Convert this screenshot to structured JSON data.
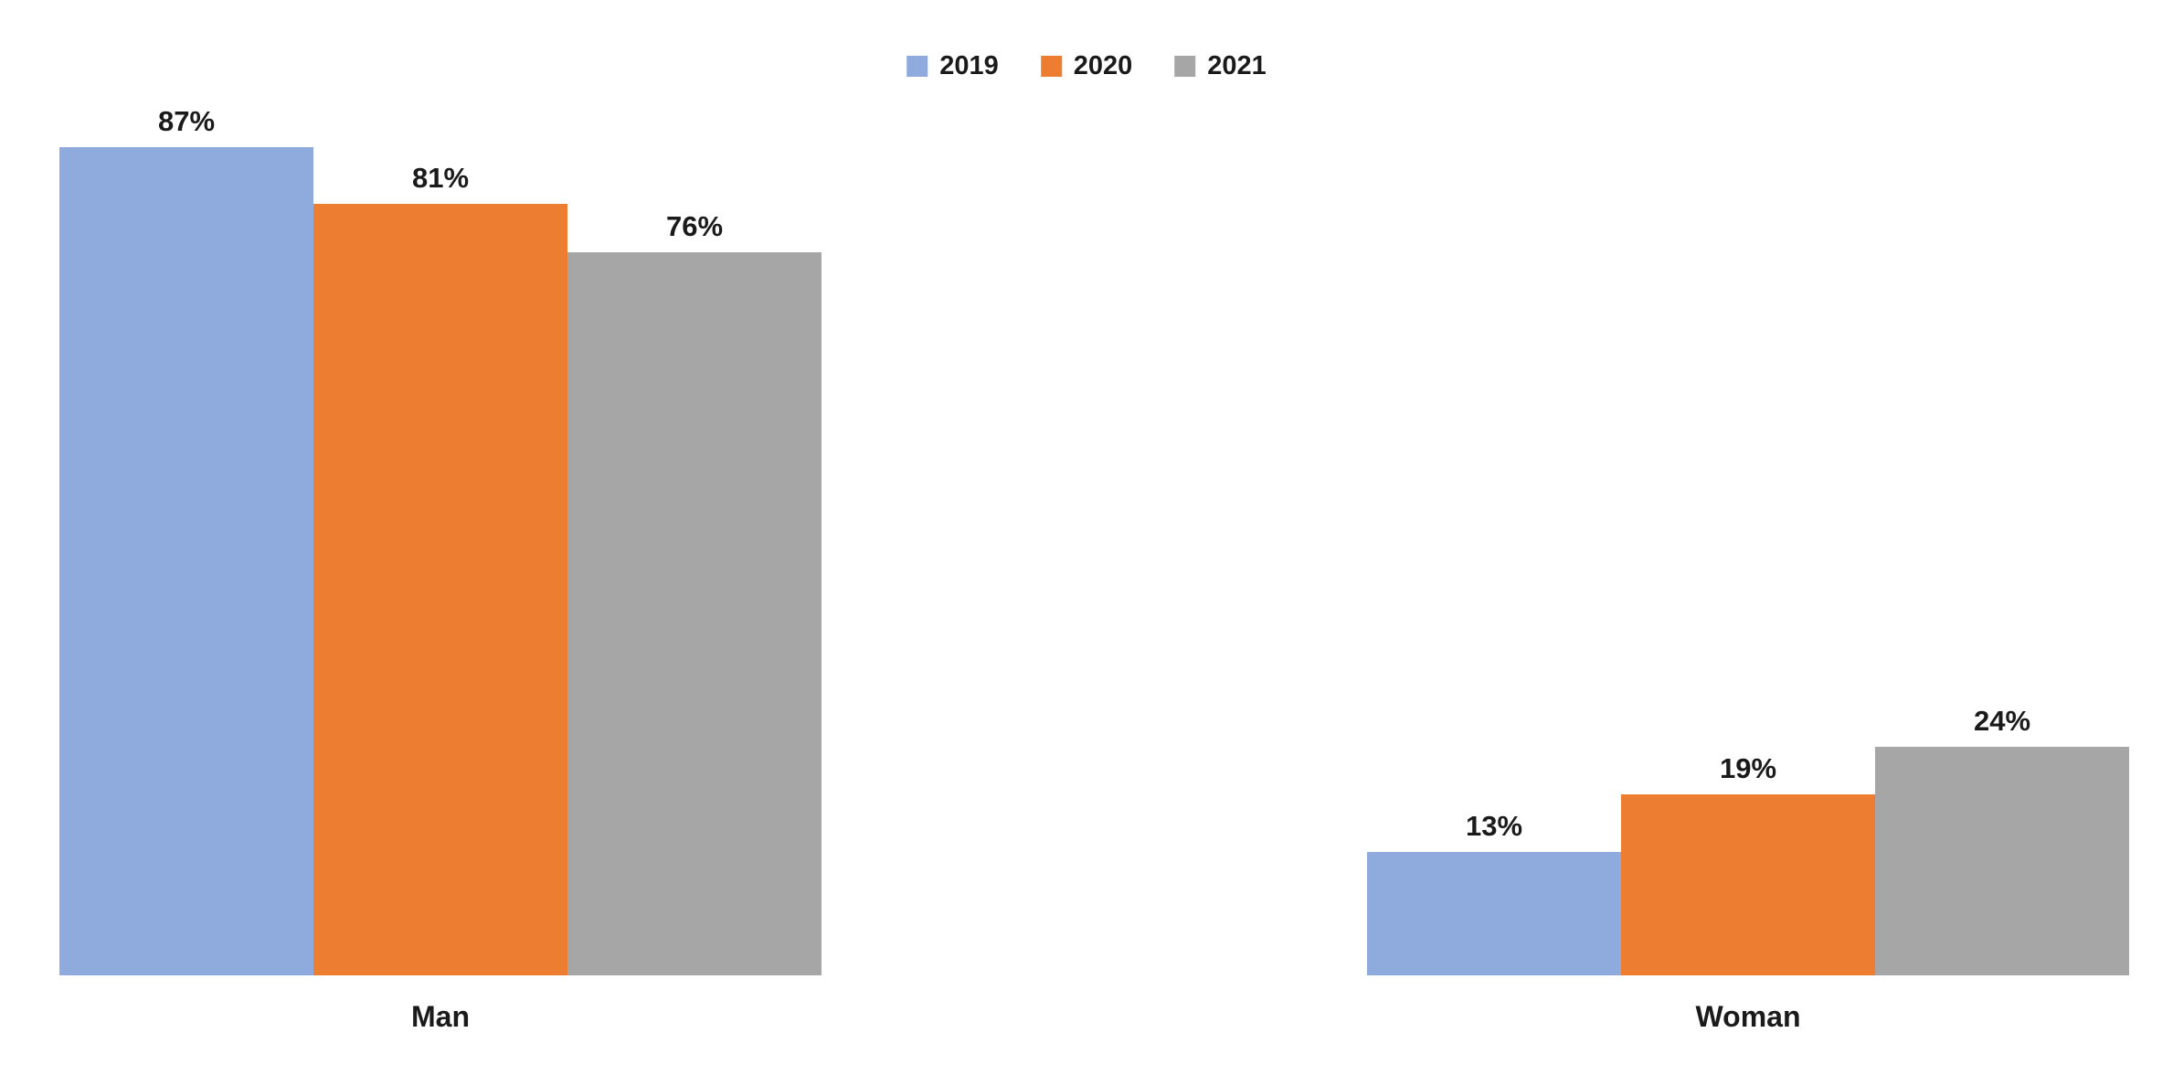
{
  "page": {
    "background": "#ffffff",
    "text_color": "#1a1a1a"
  },
  "legend": {
    "position": "top-center",
    "items": [
      {
        "label": "2019",
        "color": "#8FAADC"
      },
      {
        "label": "2020",
        "color": "#ED7D31"
      },
      {
        "label": "2021",
        "color": "#A6A6A6"
      }
    ]
  },
  "chart_data": {
    "type": "bar",
    "categories": [
      "Man",
      "Woman"
    ],
    "series": [
      {
        "name": "2019",
        "color": "#8FAADC",
        "values": [
          87,
          13
        ]
      },
      {
        "name": "2020",
        "color": "#ED7D31",
        "values": [
          81,
          19
        ]
      },
      {
        "name": "2021",
        "color": "#A6A6A6",
        "values": [
          76,
          24
        ]
      }
    ],
    "data_labels": {
      "Man": [
        "87%",
        "81%",
        "76%"
      ],
      "Woman": [
        "13%",
        "19%",
        "24%"
      ]
    },
    "value_suffix": "%",
    "title": "",
    "xlabel": "",
    "ylabel": "",
    "ylim": [
      0,
      100
    ],
    "grid": false,
    "axis_lines": false,
    "legend_position": "top-center"
  }
}
